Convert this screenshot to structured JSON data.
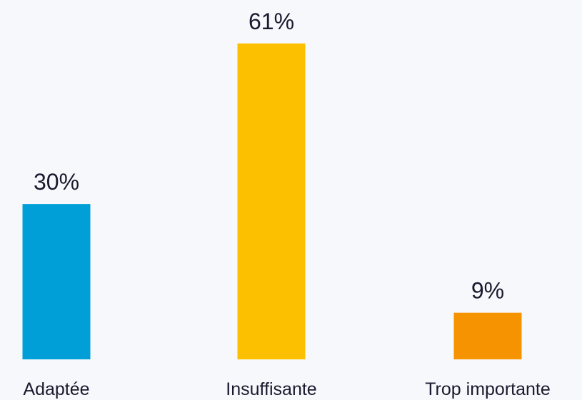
{
  "chart_data": {
    "type": "bar",
    "categories": [
      "Adaptée",
      "Insuffisante",
      "Trop importante"
    ],
    "values": [
      30,
      61,
      9
    ],
    "value_labels": [
      "30%",
      "61%",
      "9%"
    ],
    "colors": [
      "#009fd8",
      "#fdc000",
      "#f59300"
    ],
    "title": "",
    "xlabel": "",
    "ylabel": "",
    "ylim": [
      0,
      61
    ],
    "grid": false
  }
}
